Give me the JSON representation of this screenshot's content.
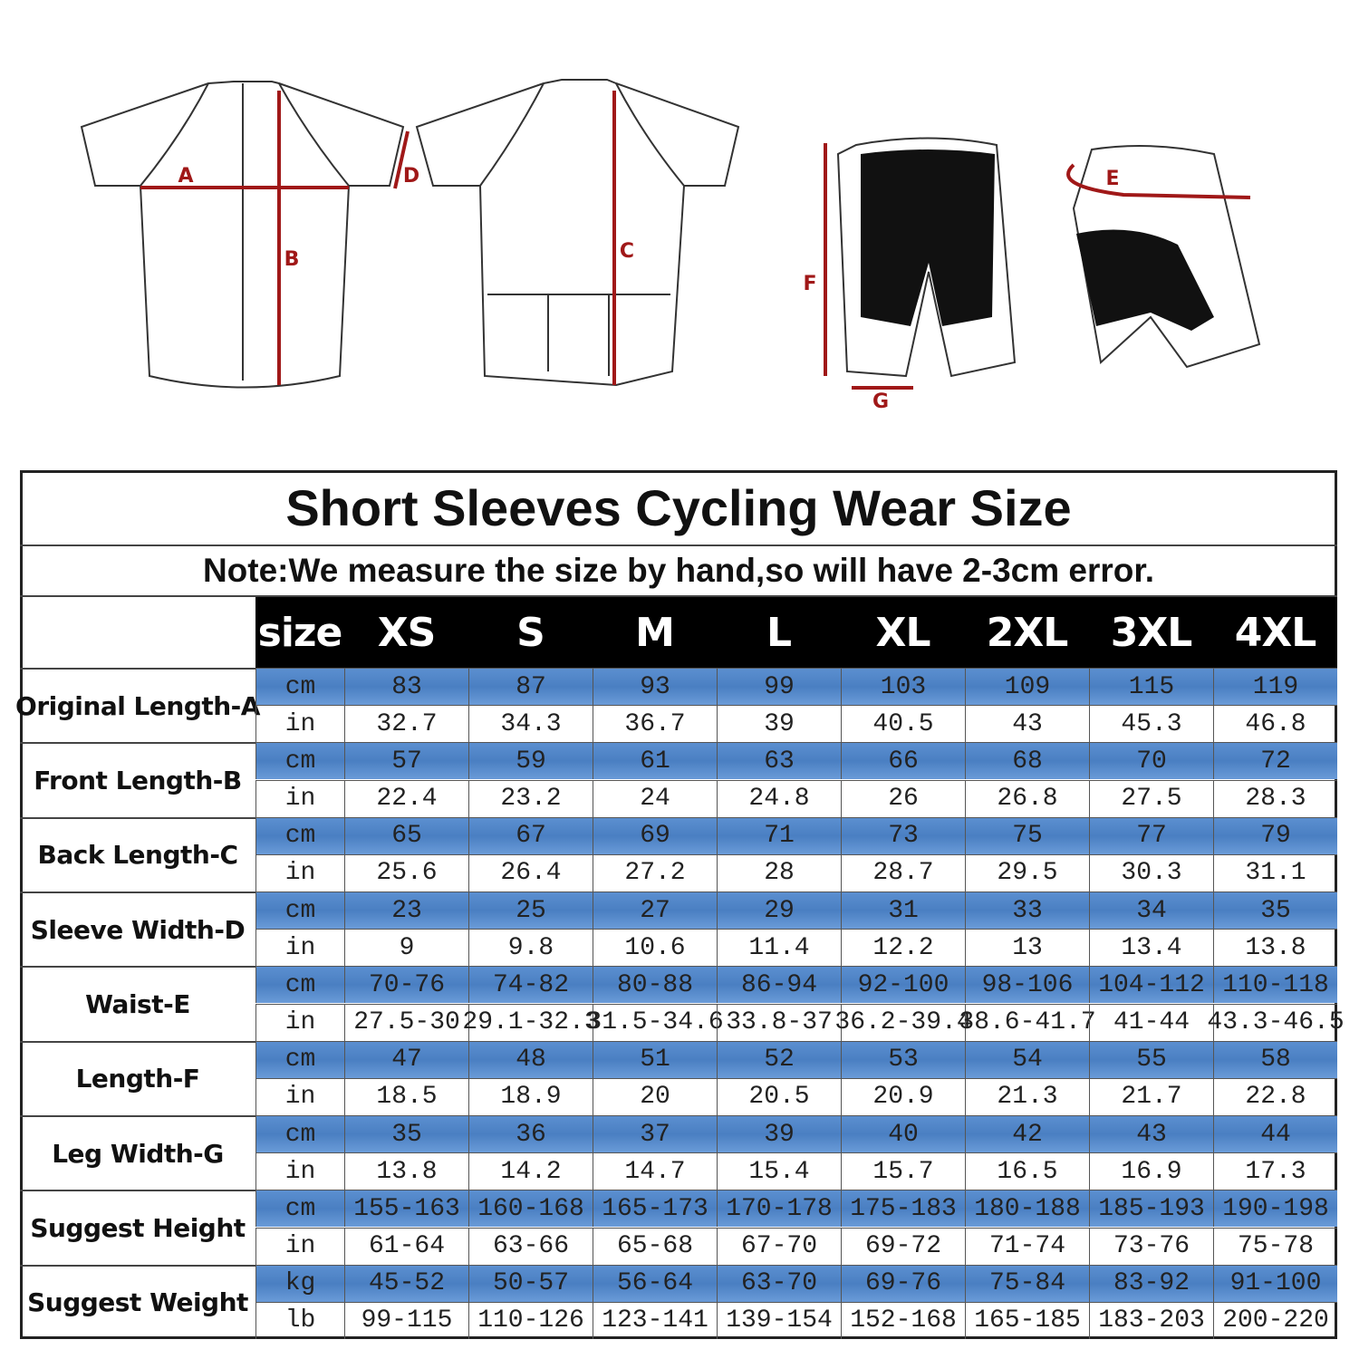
{
  "diagram": {
    "labels": [
      "A",
      "B",
      "C",
      "D",
      "E",
      "F",
      "G"
    ]
  },
  "table": {
    "title": "Short Sleeves Cycling Wear Size",
    "note": "Note:We measure the size by hand,so will have 2-3cm error.",
    "header": [
      "size",
      "XS",
      "S",
      "M",
      "L",
      "XL",
      "2XL",
      "3XL",
      "4XL"
    ],
    "rows": [
      {
        "label": "Original Length-A",
        "lines": [
          {
            "unit": "cm",
            "values": [
              83,
              87,
              93,
              99,
              103,
              109,
              115,
              119
            ]
          },
          {
            "unit": "in",
            "values": [
              32.7,
              34.3,
              36.7,
              39,
              40.5,
              43,
              45.3,
              46.8
            ]
          }
        ]
      },
      {
        "label": "Front Length-B",
        "lines": [
          {
            "unit": "cm",
            "values": [
              57,
              59,
              61,
              63,
              66,
              68,
              70,
              72
            ]
          },
          {
            "unit": "in",
            "values": [
              22.4,
              23.2,
              24,
              24.8,
              26,
              26.8,
              27.5,
              28.3
            ]
          }
        ]
      },
      {
        "label": "Back Length-C",
        "lines": [
          {
            "unit": "cm",
            "values": [
              65,
              67,
              69,
              71,
              73,
              75,
              77,
              79
            ]
          },
          {
            "unit": "in",
            "values": [
              25.6,
              26.4,
              27.2,
              28,
              28.7,
              29.5,
              30.3,
              31.1
            ]
          }
        ]
      },
      {
        "label": "Sleeve Width-D",
        "lines": [
          {
            "unit": "cm",
            "values": [
              23,
              25,
              27,
              29,
              31,
              33,
              34,
              35
            ]
          },
          {
            "unit": "in",
            "values": [
              9,
              9.8,
              10.6,
              11.4,
              12.2,
              13,
              13.4,
              13.8
            ]
          }
        ]
      },
      {
        "label": "Waist-E",
        "lines": [
          {
            "unit": "cm",
            "values": [
              "70-76",
              "74-82",
              "80-88",
              "86-94",
              "92-100",
              "98-106",
              "104-112",
              "110-118"
            ]
          },
          {
            "unit": "in",
            "values": [
              "27.5-30",
              "29.1-32.3",
              "31.5-34.6",
              "33.8-37",
              "36.2-39.4",
              "38.6-41.7",
              "41-44",
              "43.3-46.5"
            ]
          }
        ]
      },
      {
        "label": "Length-F",
        "lines": [
          {
            "unit": "cm",
            "values": [
              47,
              48,
              51,
              52,
              53,
              54,
              55,
              58
            ]
          },
          {
            "unit": "in",
            "values": [
              18.5,
              18.9,
              20,
              20.5,
              20.9,
              21.3,
              21.7,
              22.8
            ]
          }
        ]
      },
      {
        "label": "Leg Width-G",
        "lines": [
          {
            "unit": "cm",
            "values": [
              35,
              36,
              37,
              39,
              40,
              42,
              43,
              44
            ]
          },
          {
            "unit": "in",
            "values": [
              13.8,
              14.2,
              14.7,
              15.4,
              15.7,
              16.5,
              16.9,
              17.3
            ]
          }
        ]
      },
      {
        "label": "Suggest Height",
        "lines": [
          {
            "unit": "cm",
            "values": [
              "155-163",
              "160-168",
              "165-173",
              "170-178",
              "175-183",
              "180-188",
              "185-193",
              "190-198"
            ]
          },
          {
            "unit": "in",
            "values": [
              "61-64",
              "63-66",
              "65-68",
              "67-70",
              "69-72",
              "71-74",
              "73-76",
              "75-78"
            ]
          }
        ]
      },
      {
        "label": "Suggest Weight",
        "lines": [
          {
            "unit": "kg",
            "values": [
              "45-52",
              "50-57",
              "56-64",
              "63-70",
              "69-76",
              "75-84",
              "83-92",
              "91-100"
            ]
          },
          {
            "unit": "lb",
            "values": [
              "99-115",
              "110-126",
              "123-141",
              "139-154",
              "152-168",
              "165-185",
              "183-203",
              "200-220"
            ]
          }
        ]
      }
    ]
  }
}
